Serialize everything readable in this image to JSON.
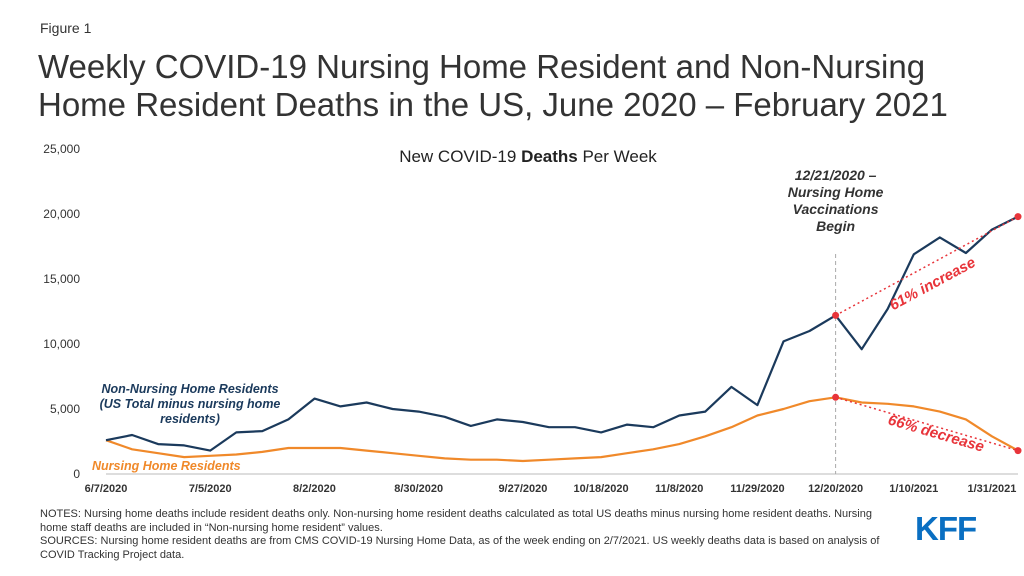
{
  "figure_label": "Figure 1",
  "title": "Weekly COVID-19 Nursing Home Resident and Non-Nursing Home Resident Deaths in the US, June 2020 – February 2021",
  "chart_data": {
    "type": "line",
    "subtitle_pre": "New COVID-19 ",
    "subtitle_bold": "Deaths",
    "subtitle_post": " Per Week",
    "ylim": [
      0,
      25000
    ],
    "y_ticks": [
      0,
      5000,
      10000,
      15000,
      20000,
      25000
    ],
    "y_tick_labels": [
      "0",
      "5,000",
      "10,000",
      "15,000",
      "20,000",
      "25,000"
    ],
    "x_tick_labels": [
      "6/7/2020",
      "7/5/2020",
      "8/2/2020",
      "8/30/2020",
      "9/27/2020",
      "10/18/2020",
      "11/8/2020",
      "11/29/2020",
      "12/20/2020",
      "1/10/2021",
      "1/31/2021"
    ],
    "x_tick_week_index": [
      0,
      4,
      8,
      12,
      16,
      19,
      22,
      25,
      28,
      31,
      34
    ],
    "weeks": [
      "6/7/2020",
      "6/14/2020",
      "6/21/2020",
      "6/28/2020",
      "7/5/2020",
      "7/12/2020",
      "7/19/2020",
      "7/26/2020",
      "8/2/2020",
      "8/9/2020",
      "8/16/2020",
      "8/23/2020",
      "8/30/2020",
      "9/6/2020",
      "9/13/2020",
      "9/20/2020",
      "9/27/2020",
      "10/4/2020",
      "10/11/2020",
      "10/18/2020",
      "10/25/2020",
      "11/1/2020",
      "11/8/2020",
      "11/15/2020",
      "11/22/2020",
      "11/29/2020",
      "12/6/2020",
      "12/13/2020",
      "12/20/2020",
      "12/27/2020",
      "1/3/2021",
      "1/10/2021",
      "1/17/2021",
      "1/24/2021",
      "1/31/2021",
      "2/7/2021"
    ],
    "series": [
      {
        "name": "Non-Nursing Home Residents (US Total minus nursing home residents)",
        "label_lines": [
          "Non-Nursing Home Residents",
          "(US Total minus nursing home",
          "residents)"
        ],
        "color": "#1b3a5c",
        "values": [
          2600,
          3000,
          2300,
          2200,
          1800,
          3200,
          3300,
          4200,
          5800,
          5200,
          5500,
          5000,
          4800,
          4400,
          3700,
          4200,
          4000,
          3600,
          3600,
          3200,
          3800,
          3600,
          4500,
          4800,
          6700,
          5300,
          10200,
          11000,
          12200,
          9600,
          12700,
          16900,
          18200,
          17000,
          18800,
          19800
        ]
      },
      {
        "name": "Nursing Home Residents",
        "label_lines": [
          "Nursing Home Residents"
        ],
        "color": "#f0892a",
        "values": [
          2600,
          1900,
          1600,
          1300,
          1400,
          1500,
          1700,
          2000,
          2000,
          2000,
          1800,
          1600,
          1400,
          1200,
          1100,
          1100,
          1000,
          1100,
          1200,
          1300,
          1600,
          1900,
          2300,
          2900,
          3600,
          4500,
          5000,
          5600,
          5900,
          5500,
          5400,
          5200,
          4800,
          4200,
          2900,
          1800
        ]
      }
    ],
    "event_marker": {
      "week_index": 28,
      "label_lines": [
        "12/21/2020 –",
        "Nursing Home",
        "Vaccinations",
        "Begin"
      ]
    },
    "annotations": {
      "increase_label": "61% increase",
      "decrease_label": "66% decrease",
      "trend_color": "#e8343a"
    }
  },
  "notes": {
    "notes_text": "NOTES: Nursing home deaths include resident deaths only. Non-nursing home resident deaths calculated as total US deaths minus nursing home resident deaths. Nursing home staff deaths are included in “Non-nursing home resident” values.",
    "sources_text": "SOURCES: Nursing home resident deaths are from CMS COVID-19 Nursing Home Data, as of the week ending on 2/7/2021. US weekly deaths data is based on analysis of COVID Tracking Project data."
  },
  "logo": {
    "text": "KFF",
    "color": "#0a6fc2"
  }
}
